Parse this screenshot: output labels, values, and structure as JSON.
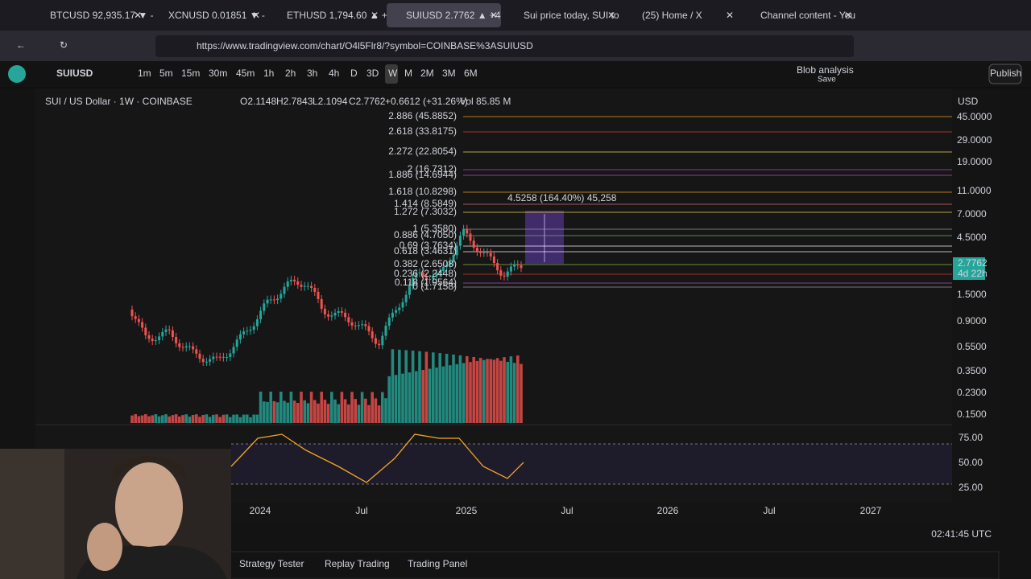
{
  "tabs": [
    "BTCUSD 92,935.17 ▼ -",
    "XCNUSD 0.01851 ▼ -",
    "ETHUSD 1,794.60 ▲ +",
    "SUIUSD 2.7762 ▲ +4",
    "Sui price today, SUI to",
    "(25) Home / X",
    "Channel content - You"
  ],
  "url": "https://www.tradingview.com/chart/O4l5Flr8/?symbol=COINBASE%3ASUIUSD",
  "toolbar": {
    "symbol": "SUIUSD",
    "intervals": [
      "1m",
      "5m",
      "15m",
      "30m",
      "45m",
      "1h",
      "2h",
      "3h",
      "4h",
      "D",
      "3D",
      "W",
      "M",
      "2M",
      "3M",
      "6M"
    ],
    "layout_name": "Blob analysis",
    "save": "Save",
    "publish": "Publish"
  },
  "legend": {
    "title": "SUI / US Dollar · 1W · COINBASE",
    "open": "O2.1148",
    "high": "H2.7843",
    "low": "L2.1094",
    "close": "C2.7762",
    "change": "+0.6612 (+31.26%)",
    "volume": "Vol 85.85 M"
  },
  "price_axis": {
    "currency": "USD",
    "labels": [
      "45.0000",
      "29.0000",
      "19.0000",
      "11.0000",
      "7.0000",
      "4.5000",
      "1.5000",
      "0.9000",
      "0.5500",
      "0.3500",
      "0.2300",
      "0.1500"
    ],
    "current": "2.7762",
    "countdown": "4d 22h"
  },
  "fib_levels": [
    {
      "label": "2.886 (45.8852)",
      "color": "#f5a623"
    },
    {
      "label": "2.618 (33.8175)",
      "color": "#e53935"
    },
    {
      "label": "2.272 (22.8054)",
      "color": "#f5e050"
    },
    {
      "label": "2 (16.7312)",
      "color": "#b04ad0"
    },
    {
      "label": "1.886 (14.6944)",
      "color": "#c04ad0"
    },
    {
      "label": "1.618 (10.8298)",
      "color": "#f5a623"
    },
    {
      "label": "1.414 (8.5849)",
      "color": "#e57373"
    },
    {
      "label": "1.272 (7.3032)",
      "color": "#f5e050"
    },
    {
      "label": "1 (5.3580)",
      "color": "#9e9e9e"
    },
    {
      "label": "0.886 (4.7050)",
      "color": "#66bb6a"
    },
    {
      "label": "0.69 (3.7634)",
      "color": "#ffffff"
    },
    {
      "label": "0.618 (3.4631)",
      "color": "#ffffff"
    },
    {
      "label": "0.382 (2.6508)",
      "color": "#8bc34a"
    },
    {
      "label": "0.236 (2.2448)",
      "color": "#e53935"
    },
    {
      "label": "0.118 (1.9564)",
      "color": "#c04ad0"
    },
    {
      "label": "0 (1.7158)",
      "color": "#9e9e9e"
    }
  ],
  "projection": "4.5258 (164.40%) 45,258",
  "rsi_axis": [
    "75.00",
    "50.00",
    "25.00"
  ],
  "time_axis": [
    "2024",
    "Jul",
    "2025",
    "Jul",
    "2026",
    "Jul",
    "2027"
  ],
  "clock": "02:41:45 UTC",
  "bottom_tabs": [
    "Strategy Tester",
    "Replay Trading",
    "Trading Panel"
  ]
}
